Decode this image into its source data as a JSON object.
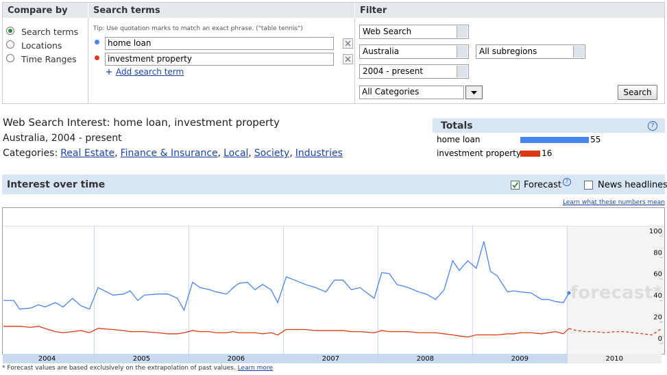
{
  "compare_by": {
    "title": "Compare by",
    "options": [
      "Search terms",
      "Locations",
      "Time Ranges"
    ],
    "selected": 0
  },
  "search_terms": {
    "title": "Search terms",
    "tip": "Tip: Use quotation marks to match an exact phrase. (\"table tennis\")",
    "terms": [
      {
        "text": "home loan",
        "color": "#4684ee"
      },
      {
        "text": "investment property",
        "color": "#dc3912"
      }
    ],
    "add": "Add search term"
  },
  "filter": {
    "title": "Filter",
    "search_type": "Web Search",
    "country": "Australia",
    "subregion": "All subregions",
    "time": "2004 - present",
    "category": "All Categories",
    "button": "Search"
  },
  "summary": {
    "title": "Web Search Interest: home loan, investment property",
    "subtitle": "Australia, 2004 - present",
    "categories_label": "Categories:",
    "separator": ",",
    "categories": [
      "Real Estate",
      "Finance & Insurance",
      "Local",
      "Society",
      "Industries"
    ]
  },
  "totals": {
    "title": "Totals",
    "help": "?",
    "items": [
      {
        "name": "home loan",
        "value": 55,
        "color": "#4684ee"
      },
      {
        "name": "investment property",
        "value": 16,
        "color": "#dc3912"
      }
    ]
  },
  "interest": {
    "title": "Interest over time",
    "help": "?",
    "forecast_label": "Forecast",
    "forecast_checked": true,
    "news_label": "News headlines",
    "news_checked": false,
    "learn_link": "Learn what these numbers mean"
  },
  "chart_data": {
    "type": "line",
    "x": [
      2004.04,
      2004.15,
      2004.21,
      2004.33,
      2004.41,
      2004.48,
      2004.59,
      2004.67,
      2004.77,
      2004.86,
      2004.95,
      2005.04,
      2005.2,
      2005.31,
      2005.38,
      2005.46,
      2005.53,
      2005.67,
      2005.78,
      2005.88,
      2005.95,
      2006.04,
      2006.12,
      2006.22,
      2006.29,
      2006.4,
      2006.47,
      2006.53,
      2006.62,
      2006.7,
      2006.78,
      2006.87,
      2006.94,
      2007.03,
      2007.12,
      2007.23,
      2007.34,
      2007.45,
      2007.54,
      2007.63,
      2007.72,
      2007.81,
      2007.96,
      2008.04,
      2008.12,
      2008.2,
      2008.32,
      2008.43,
      2008.51,
      2008.61,
      2008.7,
      2008.79,
      2008.86,
      2008.95,
      2009.04,
      2009.12,
      2009.19,
      2009.26,
      2009.37,
      2009.44,
      2009.51,
      2009.62,
      2009.73,
      2009.8,
      2009.88,
      2009.96,
      2010.02
    ],
    "series": [
      {
        "name": "home loan",
        "color": "#4684ee",
        "values": [
          40,
          40,
          32,
          33,
          36,
          34,
          38,
          34,
          42,
          35,
          32,
          52,
          45,
          46,
          49,
          40,
          45,
          46,
          46,
          42,
          31,
          57,
          52,
          50,
          48,
          46,
          52,
          56,
          57,
          50,
          55,
          50,
          38,
          62,
          59,
          55,
          52,
          48,
          59,
          59,
          50,
          52,
          42,
          66,
          65,
          55,
          52,
          48,
          46,
          41,
          50,
          77,
          68,
          77,
          70,
          95,
          67,
          63,
          48,
          49,
          48,
          47,
          41,
          41,
          39,
          38,
          47
        ]
      },
      {
        "name": "investment property",
        "color": "#dc3912",
        "values": [
          16,
          16,
          16,
          15,
          16,
          14,
          11,
          10,
          11,
          12,
          10,
          14,
          13,
          12,
          11,
          11,
          11,
          10,
          9,
          9,
          10,
          12,
          11,
          11,
          10,
          10,
          11,
          10,
          10,
          10,
          9,
          10,
          8,
          13,
          13,
          13,
          12,
          12,
          12,
          12,
          11,
          11,
          10,
          12,
          11,
          11,
          11,
          10,
          10,
          10,
          9,
          8,
          7,
          6,
          8,
          8,
          8,
          8,
          9,
          9,
          10,
          10,
          9,
          10,
          11,
          9,
          14
        ]
      }
    ],
    "forecast": {
      "color": "#dc3912",
      "x": [
        2010.02,
        2010.1,
        2010.2,
        2010.3,
        2010.4,
        2010.5,
        2010.6,
        2010.7,
        2010.8,
        2010.9,
        2011.0
      ],
      "values": [
        14,
        12,
        11,
        11,
        10,
        11,
        11,
        10,
        9,
        8,
        14
      ]
    },
    "watermark": "forecast*",
    "xlim": [
      2004.04,
      2011.02
    ],
    "xticks": [
      {
        "value": 2004.5,
        "label": "2004"
      },
      {
        "value": 2005.5,
        "label": "2005"
      },
      {
        "value": 2006.5,
        "label": "2006"
      },
      {
        "value": 2007.5,
        "label": "2007"
      },
      {
        "value": 2008.5,
        "label": "2008"
      },
      {
        "value": 2009.5,
        "label": "2009"
      },
      {
        "value": 2010.5,
        "label": "2010"
      }
    ],
    "ylim": [
      -9.6,
      126.7
    ],
    "yticks": [
      0,
      20,
      40,
      60,
      80,
      100
    ]
  },
  "footnote": {
    "text": "* Forecast values are based exclusively on the extrapolation of past values.",
    "link": "Learn more"
  }
}
